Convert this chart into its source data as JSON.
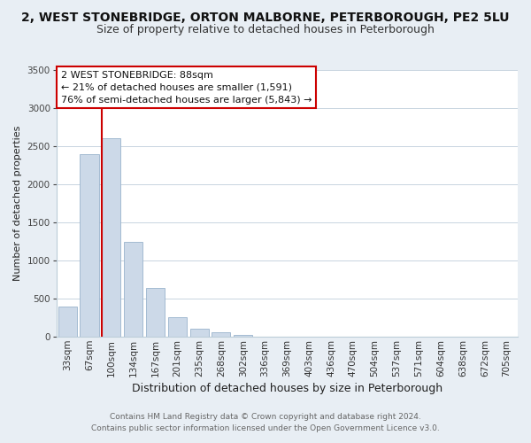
{
  "title": "2, WEST STONEBRIDGE, ORTON MALBORNE, PETERBOROUGH, PE2 5LU",
  "subtitle": "Size of property relative to detached houses in Peterborough",
  "xlabel": "Distribution of detached houses by size in Peterborough",
  "ylabel": "Number of detached properties",
  "categories": [
    "33sqm",
    "67sqm",
    "100sqm",
    "134sqm",
    "167sqm",
    "201sqm",
    "235sqm",
    "268sqm",
    "302sqm",
    "336sqm",
    "369sqm",
    "403sqm",
    "436sqm",
    "470sqm",
    "504sqm",
    "537sqm",
    "571sqm",
    "604sqm",
    "638sqm",
    "672sqm",
    "705sqm"
  ],
  "bar_values": [
    400,
    2400,
    2600,
    1250,
    640,
    260,
    110,
    55,
    30,
    0,
    0,
    0,
    0,
    0,
    0,
    0,
    0,
    0,
    0,
    0,
    0
  ],
  "bar_color": "#ccd9e8",
  "bar_edge_color": "#99b3cc",
  "ylim": [
    0,
    3500
  ],
  "yticks": [
    0,
    500,
    1000,
    1500,
    2000,
    2500,
    3000,
    3500
  ],
  "vline_color": "#cc0000",
  "annotation_title": "2 WEST STONEBRIDGE: 88sqm",
  "annotation_line1": "← 21% of detached houses are smaller (1,591)",
  "annotation_line2": "76% of semi-detached houses are larger (5,843) →",
  "annotation_box_color": "#ffffff",
  "annotation_box_edge": "#cc0000",
  "footer_line1": "Contains HM Land Registry data © Crown copyright and database right 2024.",
  "footer_line2": "Contains public sector information licensed under the Open Government Licence v3.0.",
  "background_color": "#e8eef4",
  "plot_background_color": "#ffffff",
  "grid_color": "#c8d4e0",
  "title_fontsize": 10,
  "subtitle_fontsize": 9,
  "xlabel_fontsize": 9,
  "ylabel_fontsize": 8,
  "tick_fontsize": 7.5,
  "annotation_fontsize": 8,
  "footer_fontsize": 6.5
}
